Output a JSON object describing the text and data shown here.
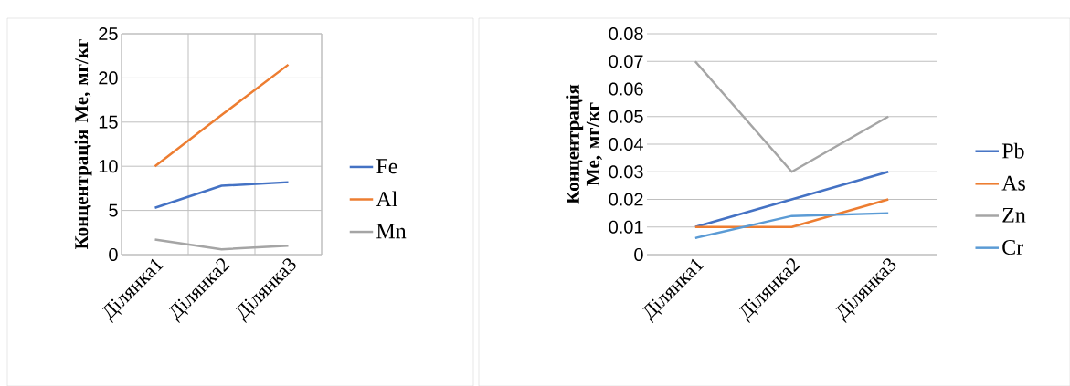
{
  "chart_data": [
    {
      "type": "line",
      "ylabel": "Концентрація Ме, мг/кг",
      "categories": [
        "Ділянка1",
        "Ділянка2",
        "Ділянка3"
      ],
      "ylim": [
        0,
        25
      ],
      "yticks": [
        0,
        5,
        10,
        15,
        20,
        25
      ],
      "grid": true,
      "legend": "right",
      "series": [
        {
          "name": "Fe",
          "color": "#4472c4",
          "values": [
            5.3,
            7.8,
            8.2
          ]
        },
        {
          "name": "Al",
          "color": "#ed7d31",
          "values": [
            10,
            15.8,
            21.5
          ]
        },
        {
          "name": "Mn",
          "color": "#a5a5a5",
          "values": [
            1.7,
            0.6,
            1.0
          ]
        }
      ]
    },
    {
      "type": "line",
      "ylabel": "Концентрація Ме, мг/кг",
      "categories": [
        "Ділянка1",
        "Ділянка2",
        "Ділянка3"
      ],
      "ylim": [
        0,
        0.08
      ],
      "yticks": [
        0,
        0.01,
        0.02,
        0.03,
        0.04,
        0.05,
        0.06,
        0.07,
        0.08
      ],
      "grid": "y",
      "legend": "right",
      "series": [
        {
          "name": "Pb",
          "color": "#4472c4",
          "values": [
            0.01,
            0.02,
            0.03
          ]
        },
        {
          "name": "As",
          "color": "#ed7d31",
          "values": [
            0.01,
            0.01,
            0.02
          ]
        },
        {
          "name": "Zn",
          "color": "#a5a5a5",
          "values": [
            0.07,
            0.03,
            0.05
          ]
        },
        {
          "name": "Cr",
          "color": "#5b9bd5",
          "values": [
            0.006,
            0.014,
            0.015
          ]
        }
      ]
    }
  ]
}
